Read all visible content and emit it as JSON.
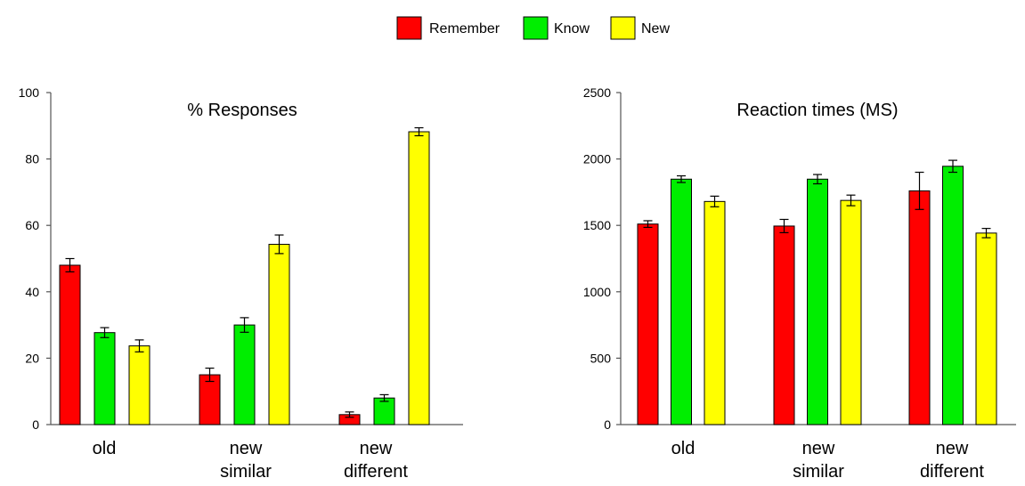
{
  "legend": {
    "items": [
      {
        "label": "Remember",
        "color": "#ff0000"
      },
      {
        "label": "Know",
        "color": "#00ee00"
      },
      {
        "label": "New",
        "color": "#ffff00"
      }
    ]
  },
  "chart_data": [
    {
      "type": "bar",
      "title": "% Responses",
      "xlabel": "",
      "ylabel": "",
      "categories": [
        [
          "old"
        ],
        [
          "new",
          "similar"
        ],
        [
          "new",
          "different"
        ]
      ],
      "ylim": [
        0,
        100
      ],
      "yticks": [
        0,
        20,
        40,
        60,
        80,
        100
      ],
      "grid": false,
      "series": [
        {
          "name": "Remember",
          "color": "#ff0000",
          "values": [
            48,
            15,
            3
          ],
          "errors": [
            2,
            2,
            0.8
          ]
        },
        {
          "name": "Know",
          "color": "#00ee00",
          "values": [
            27.7,
            30,
            8
          ],
          "errors": [
            1.5,
            2.2,
            1
          ]
        },
        {
          "name": "New",
          "color": "#ffff00",
          "values": [
            23.7,
            54.3,
            88.2
          ],
          "errors": [
            1.8,
            2.8,
            1.2
          ]
        }
      ]
    },
    {
      "type": "bar",
      "title": "Reaction times (MS)",
      "xlabel": "",
      "ylabel": "",
      "categories": [
        [
          "old"
        ],
        [
          "new",
          "similar"
        ],
        [
          "new",
          "different"
        ]
      ],
      "ylim": [
        0,
        2500
      ],
      "yticks": [
        0,
        500,
        1000,
        1500,
        2000,
        2500
      ],
      "grid": false,
      "series": [
        {
          "name": "Remember",
          "color": "#ff0000",
          "values": [
            1510,
            1495,
            1760
          ],
          "errors": [
            25,
            50,
            140
          ]
        },
        {
          "name": "Know",
          "color": "#00ee00",
          "values": [
            1848,
            1848,
            1945
          ],
          "errors": [
            25,
            35,
            45
          ]
        },
        {
          "name": "New",
          "color": "#ffff00",
          "values": [
            1680,
            1688,
            1442
          ],
          "errors": [
            40,
            40,
            35
          ]
        }
      ]
    }
  ]
}
